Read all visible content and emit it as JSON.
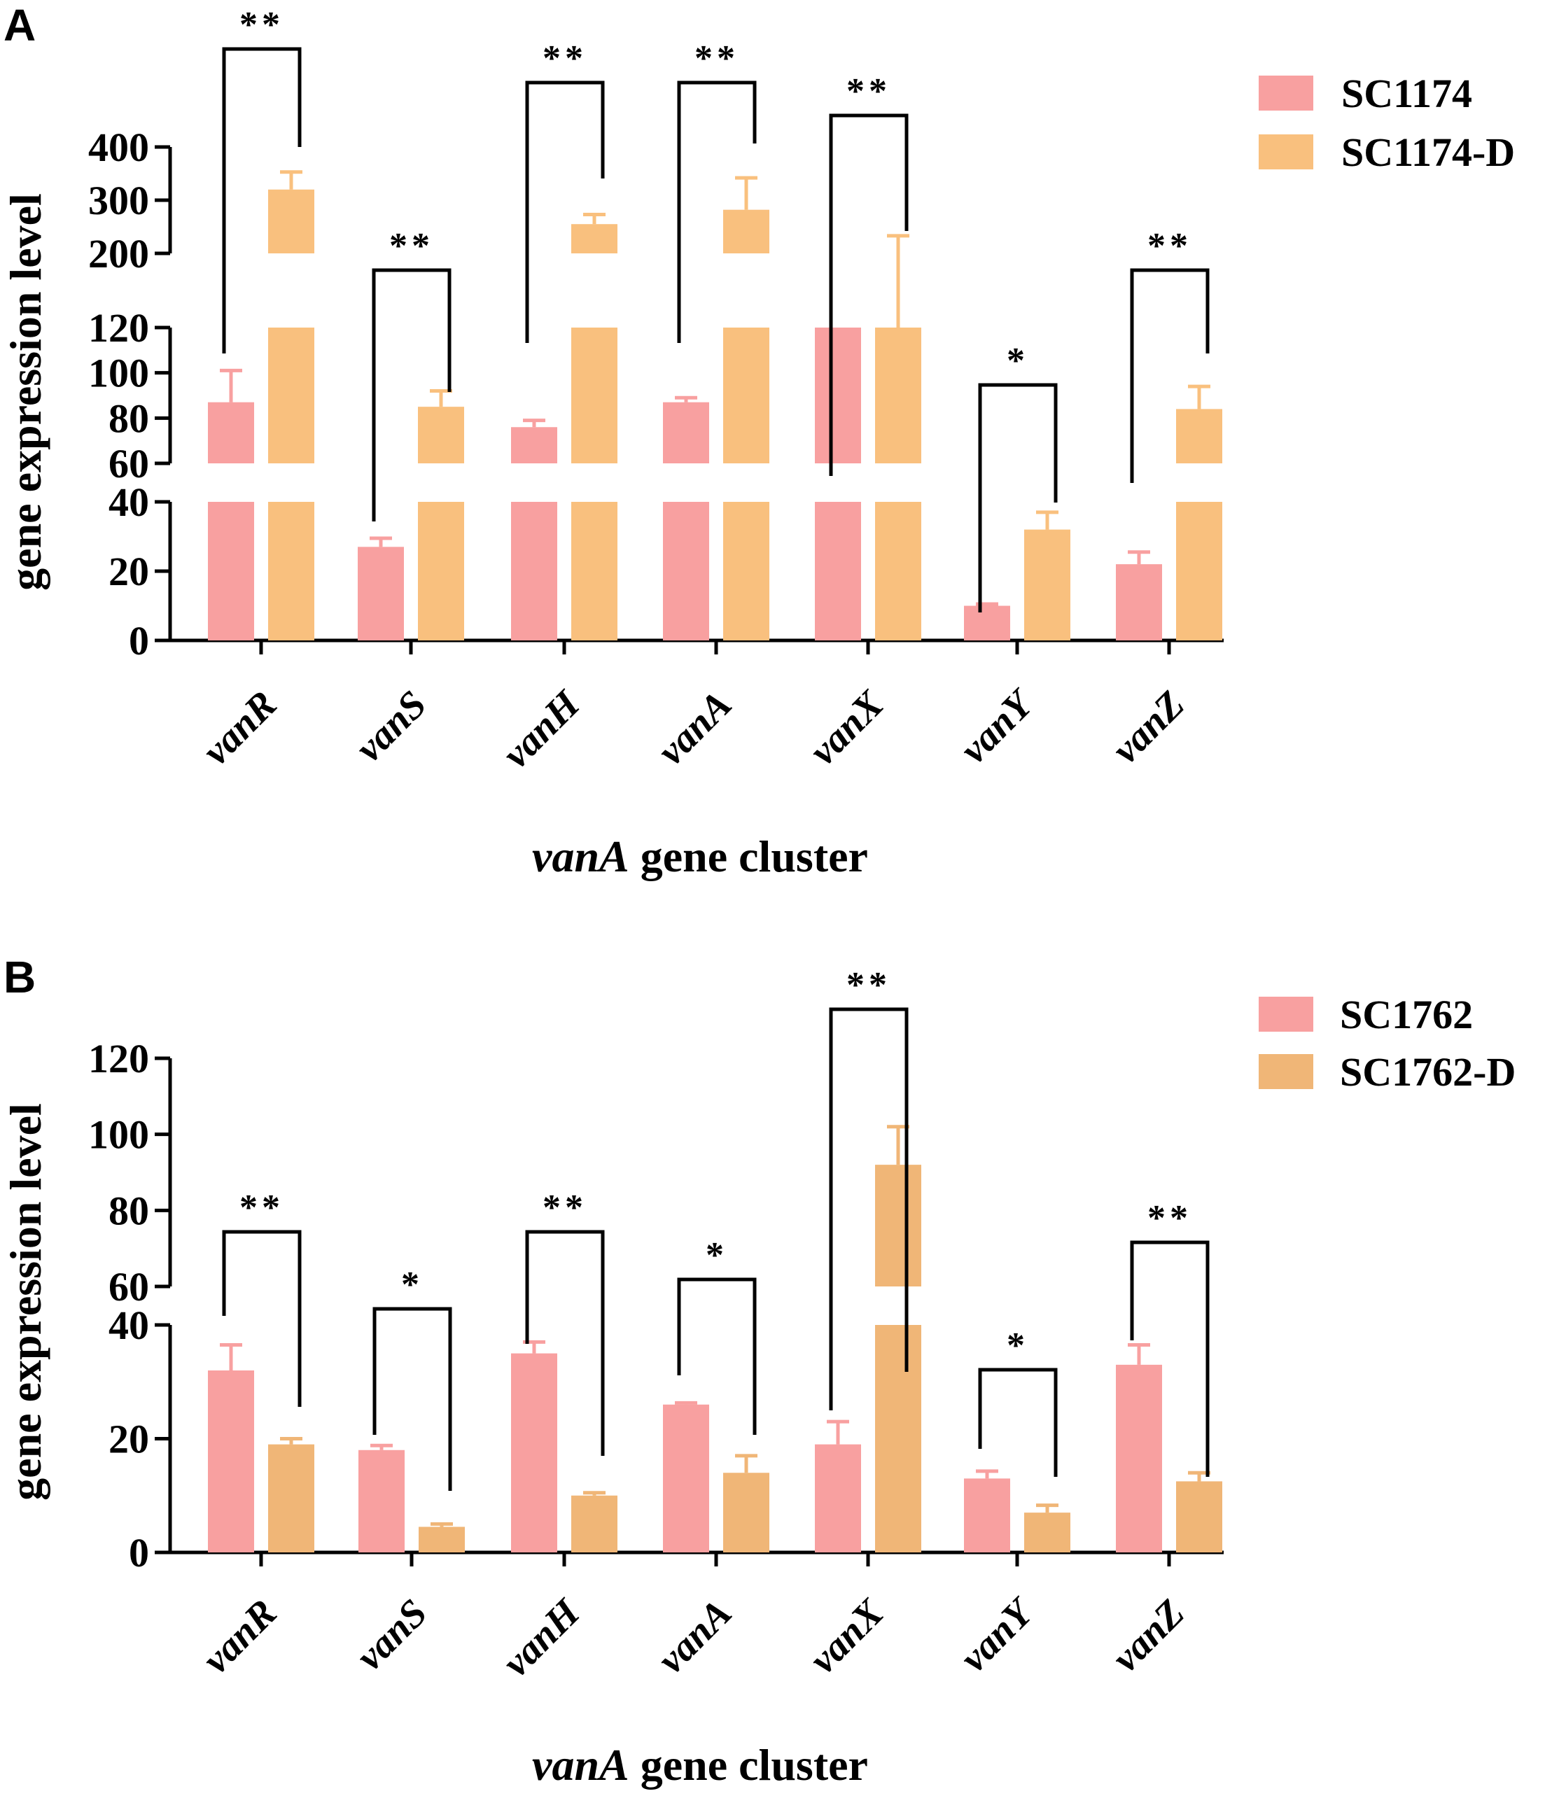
{
  "colors": {
    "sc_a": "#F8A0A0",
    "scd_a": "#F9C07E",
    "sc_b": "#F8A0A0",
    "scd_b": "#F0B677",
    "ink": "#000000"
  },
  "chart_data": [
    {
      "panel": "A",
      "type": "bar",
      "title": "",
      "xlabel_italic": "vanA",
      "xlabel_rest": " gene cluster",
      "ylabel": "gene expression level",
      "categories": [
        "vanR",
        "vanS",
        "vanH",
        "vanA",
        "vanX",
        "vanY",
        "vanZ"
      ],
      "axis_breaks": [
        [
          40,
          60
        ],
        [
          120,
          200
        ]
      ],
      "segments": [
        {
          "range": [
            0,
            40
          ],
          "ticks": [
            "0",
            "20",
            "40"
          ]
        },
        {
          "range": [
            60,
            120
          ],
          "ticks": [
            "60",
            "80",
            "100",
            "120"
          ]
        },
        {
          "range": [
            200,
            400
          ],
          "ticks": [
            "200",
            "300",
            "400"
          ]
        }
      ],
      "series": [
        {
          "name": "SC1174",
          "values": [
            87,
            27,
            76,
            87,
            190,
            10,
            22
          ],
          "errors": [
            14,
            2.5,
            3,
            2,
            0,
            0.5,
            3.5
          ]
        },
        {
          "name": "SC1174-D",
          "values": [
            320,
            85,
            255,
            282,
            195,
            32,
            84
          ],
          "errors": [
            33,
            7,
            18,
            60,
            38,
            5,
            10
          ]
        }
      ],
      "significance": [
        "**",
        "**",
        "**",
        "**",
        "**",
        "*",
        "**"
      ],
      "legend_position": "top-right"
    },
    {
      "panel": "B",
      "type": "bar",
      "title": "",
      "xlabel_italic": "vanA",
      "xlabel_rest": " gene cluster",
      "ylabel": "gene expression level",
      "categories": [
        "vanR",
        "vanS",
        "vanH",
        "vanA",
        "vanX",
        "vanY",
        "vanZ"
      ],
      "axis_breaks": [
        [
          40,
          60
        ]
      ],
      "segments": [
        {
          "range": [
            0,
            40
          ],
          "ticks": [
            "0",
            "20",
            "40"
          ]
        },
        {
          "range": [
            60,
            120
          ],
          "ticks": [
            "60",
            "80",
            "100",
            "120"
          ]
        }
      ],
      "series": [
        {
          "name": "SC1762",
          "values": [
            32,
            18,
            35,
            26,
            19,
            13,
            33
          ],
          "errors": [
            4.5,
            0.8,
            2,
            0.3,
            4,
            1.3,
            3.5
          ]
        },
        {
          "name": "SC1762-D",
          "values": [
            19,
            4.5,
            10,
            14,
            92,
            7,
            12.5
          ],
          "errors": [
            1,
            0.5,
            0.5,
            3,
            10,
            1.3,
            1.5
          ]
        }
      ],
      "significance": [
        "**",
        "*",
        "**",
        "*",
        "**",
        "*",
        "**"
      ],
      "legend_position": "top-right"
    }
  ]
}
